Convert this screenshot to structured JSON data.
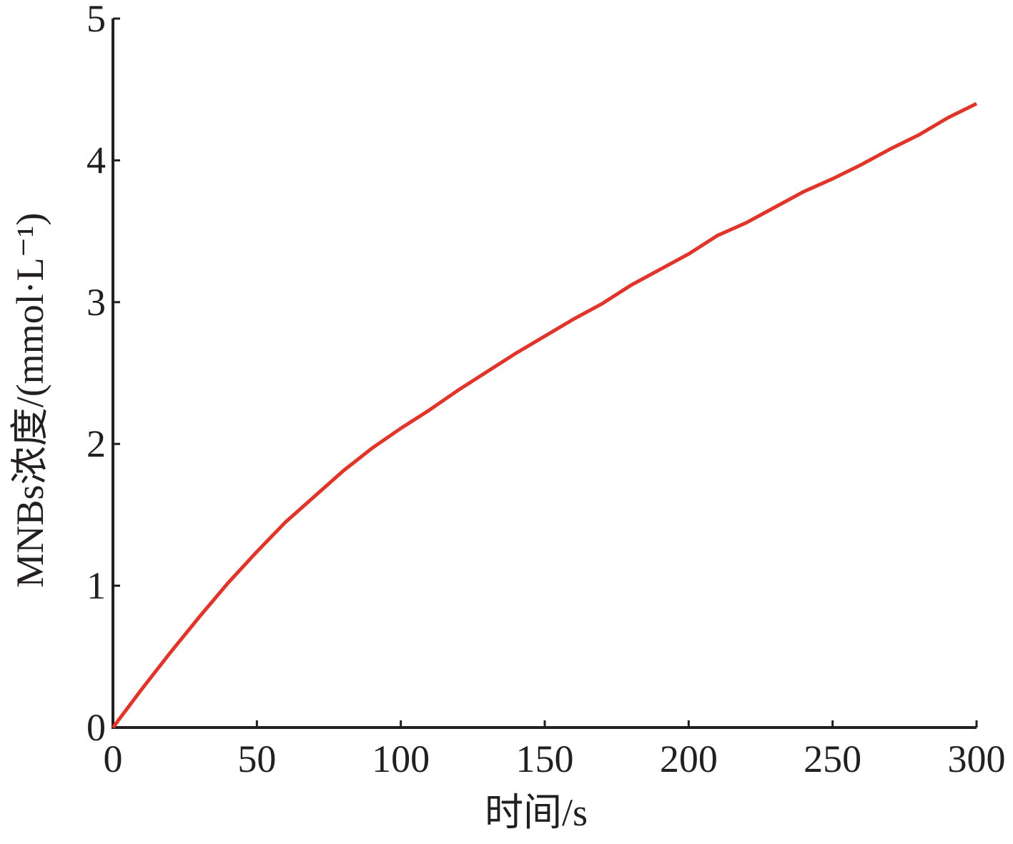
{
  "chart_data": {
    "type": "line",
    "x_label": "时间/s",
    "y_label": "MNBs浓度/(mmol·L⁻¹)",
    "x": [
      0,
      10,
      20,
      30,
      40,
      50,
      60,
      70,
      80,
      90,
      100,
      110,
      120,
      130,
      140,
      150,
      160,
      170,
      180,
      190,
      200,
      210,
      220,
      230,
      240,
      250,
      260,
      270,
      280,
      290,
      300
    ],
    "series": [
      {
        "color": "#e0352b",
        "values": [
          0,
          0.27,
          0.53,
          0.78,
          1.02,
          1.24,
          1.45,
          1.63,
          1.81,
          1.97,
          2.11,
          2.24,
          2.38,
          2.51,
          2.64,
          2.76,
          2.88,
          2.99,
          3.12,
          3.23,
          3.34,
          3.47,
          3.56,
          3.67,
          3.78,
          3.87,
          3.97,
          4.08,
          4.18,
          4.3,
          4.4
        ]
      }
    ],
    "xlim": [
      0,
      300
    ],
    "xticks": [
      0,
      50,
      100,
      150,
      200,
      250,
      300
    ],
    "ylim": [
      0,
      5
    ],
    "yticks": [
      0,
      1,
      2,
      3,
      4,
      5
    ],
    "grid": false
  }
}
